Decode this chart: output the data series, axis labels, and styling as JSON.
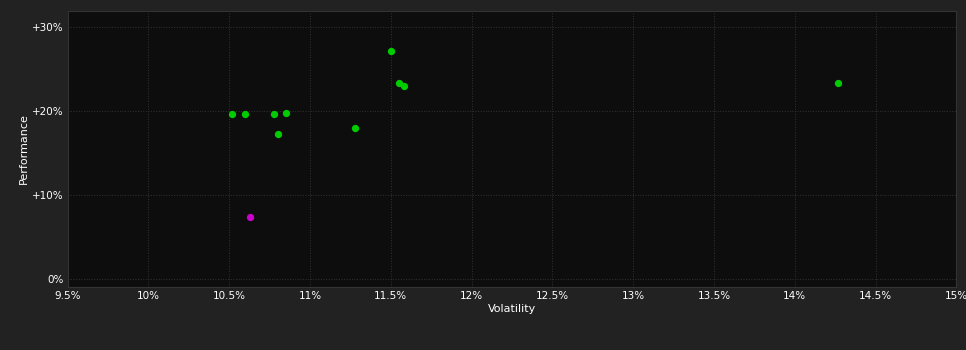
{
  "title": "",
  "xlabel": "Volatility",
  "ylabel": "Performance",
  "background_color": "#222222",
  "plot_bg_color": "#0d0d0d",
  "text_color": "#ffffff",
  "x_ticks": [
    9.5,
    10.0,
    10.5,
    11.0,
    11.5,
    12.0,
    12.5,
    13.0,
    13.5,
    14.0,
    14.5,
    15.0
  ],
  "x_tick_labels": [
    "9.5%",
    "10%",
    "10.5%",
    "11%",
    "11.5%",
    "12%",
    "12.5%",
    "13%",
    "13.5%",
    "14%",
    "14.5%",
    "15%"
  ],
  "y_ticks": [
    0,
    10,
    20,
    30
  ],
  "y_tick_labels": [
    "0%",
    "+10%",
    "+20%",
    "+30%"
  ],
  "xlim": [
    9.5,
    15.0
  ],
  "ylim": [
    -1,
    32
  ],
  "green_points": [
    [
      10.52,
      19.7
    ],
    [
      10.6,
      19.6
    ],
    [
      10.78,
      19.7
    ],
    [
      10.85,
      19.8
    ],
    [
      10.8,
      17.3
    ],
    [
      11.28,
      18.0
    ],
    [
      11.5,
      27.2
    ],
    [
      11.55,
      23.4
    ],
    [
      11.58,
      23.0
    ],
    [
      14.27,
      23.3
    ]
  ],
  "magenta_points": [
    [
      10.63,
      7.3
    ]
  ],
  "dot_size": 18,
  "green_color": "#00cc00",
  "magenta_color": "#cc00cc"
}
